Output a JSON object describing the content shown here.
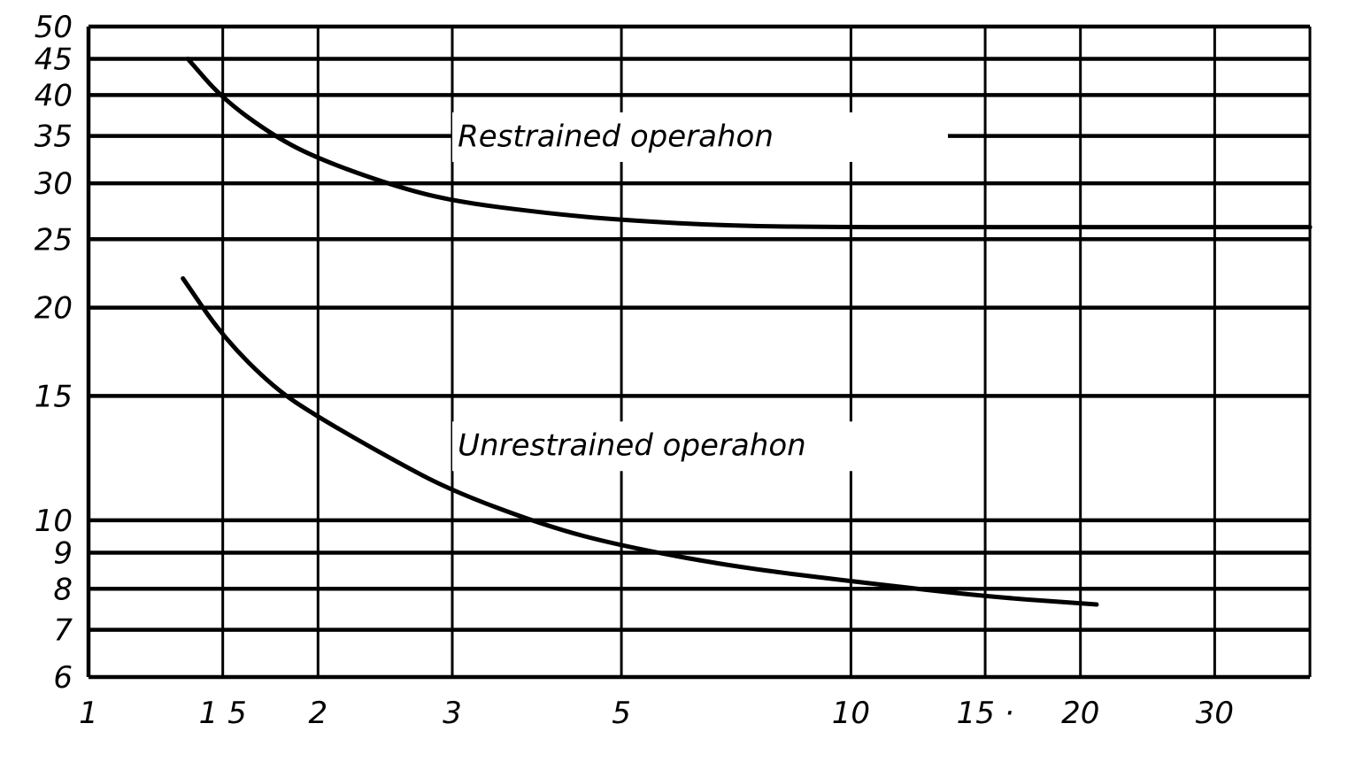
{
  "chart_data": {
    "type": "line",
    "x_scale": "log",
    "y_scale": "log",
    "xlim": [
      1,
      40
    ],
    "ylim": [
      6,
      50
    ],
    "grid": true,
    "x_tick_labels": [
      {
        "value": 1,
        "label": "1"
      },
      {
        "value": 1.5,
        "label": "1 5"
      },
      {
        "value": 2,
        "label": "2"
      },
      {
        "value": 3,
        "label": "3"
      },
      {
        "value": 5,
        "label": "5"
      },
      {
        "value": 10,
        "label": "10"
      },
      {
        "value": 15,
        "label": "15 ·"
      },
      {
        "value": 20,
        "label": "20"
      },
      {
        "value": 30,
        "label": "30"
      }
    ],
    "y_tick_labels": [
      {
        "value": 6,
        "label": "6"
      },
      {
        "value": 7,
        "label": "7"
      },
      {
        "value": 8,
        "label": "8"
      },
      {
        "value": 9,
        "label": "9"
      },
      {
        "value": 10,
        "label": "10"
      },
      {
        "value": 15,
        "label": "15"
      },
      {
        "value": 20,
        "label": "20"
      },
      {
        "value": 25,
        "label": "25"
      },
      {
        "value": 30,
        "label": "30"
      },
      {
        "value": 35,
        "label": "35"
      },
      {
        "value": 40,
        "label": "40"
      },
      {
        "value": 45,
        "label": "45"
      },
      {
        "value": 50,
        "label": "50"
      }
    ],
    "series": [
      {
        "name": "Restrained operahon",
        "x": [
          1.35,
          1.5,
          1.75,
          2,
          2.5,
          3,
          4,
          5,
          7,
          10,
          15,
          20,
          30,
          40
        ],
        "y": [
          45,
          39.5,
          35,
          32.5,
          29.8,
          28.3,
          27.2,
          26.6,
          26.1,
          26,
          26,
          26,
          26,
          26
        ]
      },
      {
        "name": "Unrestrained operahon",
        "x": [
          1.33,
          1.5,
          1.75,
          2,
          2.5,
          3,
          4,
          5,
          7,
          10,
          15,
          21
        ],
        "y": [
          22,
          18.2,
          15.4,
          14,
          12.2,
          11,
          9.8,
          9.2,
          8.6,
          8.2,
          7.8,
          7.6
        ]
      }
    ]
  }
}
